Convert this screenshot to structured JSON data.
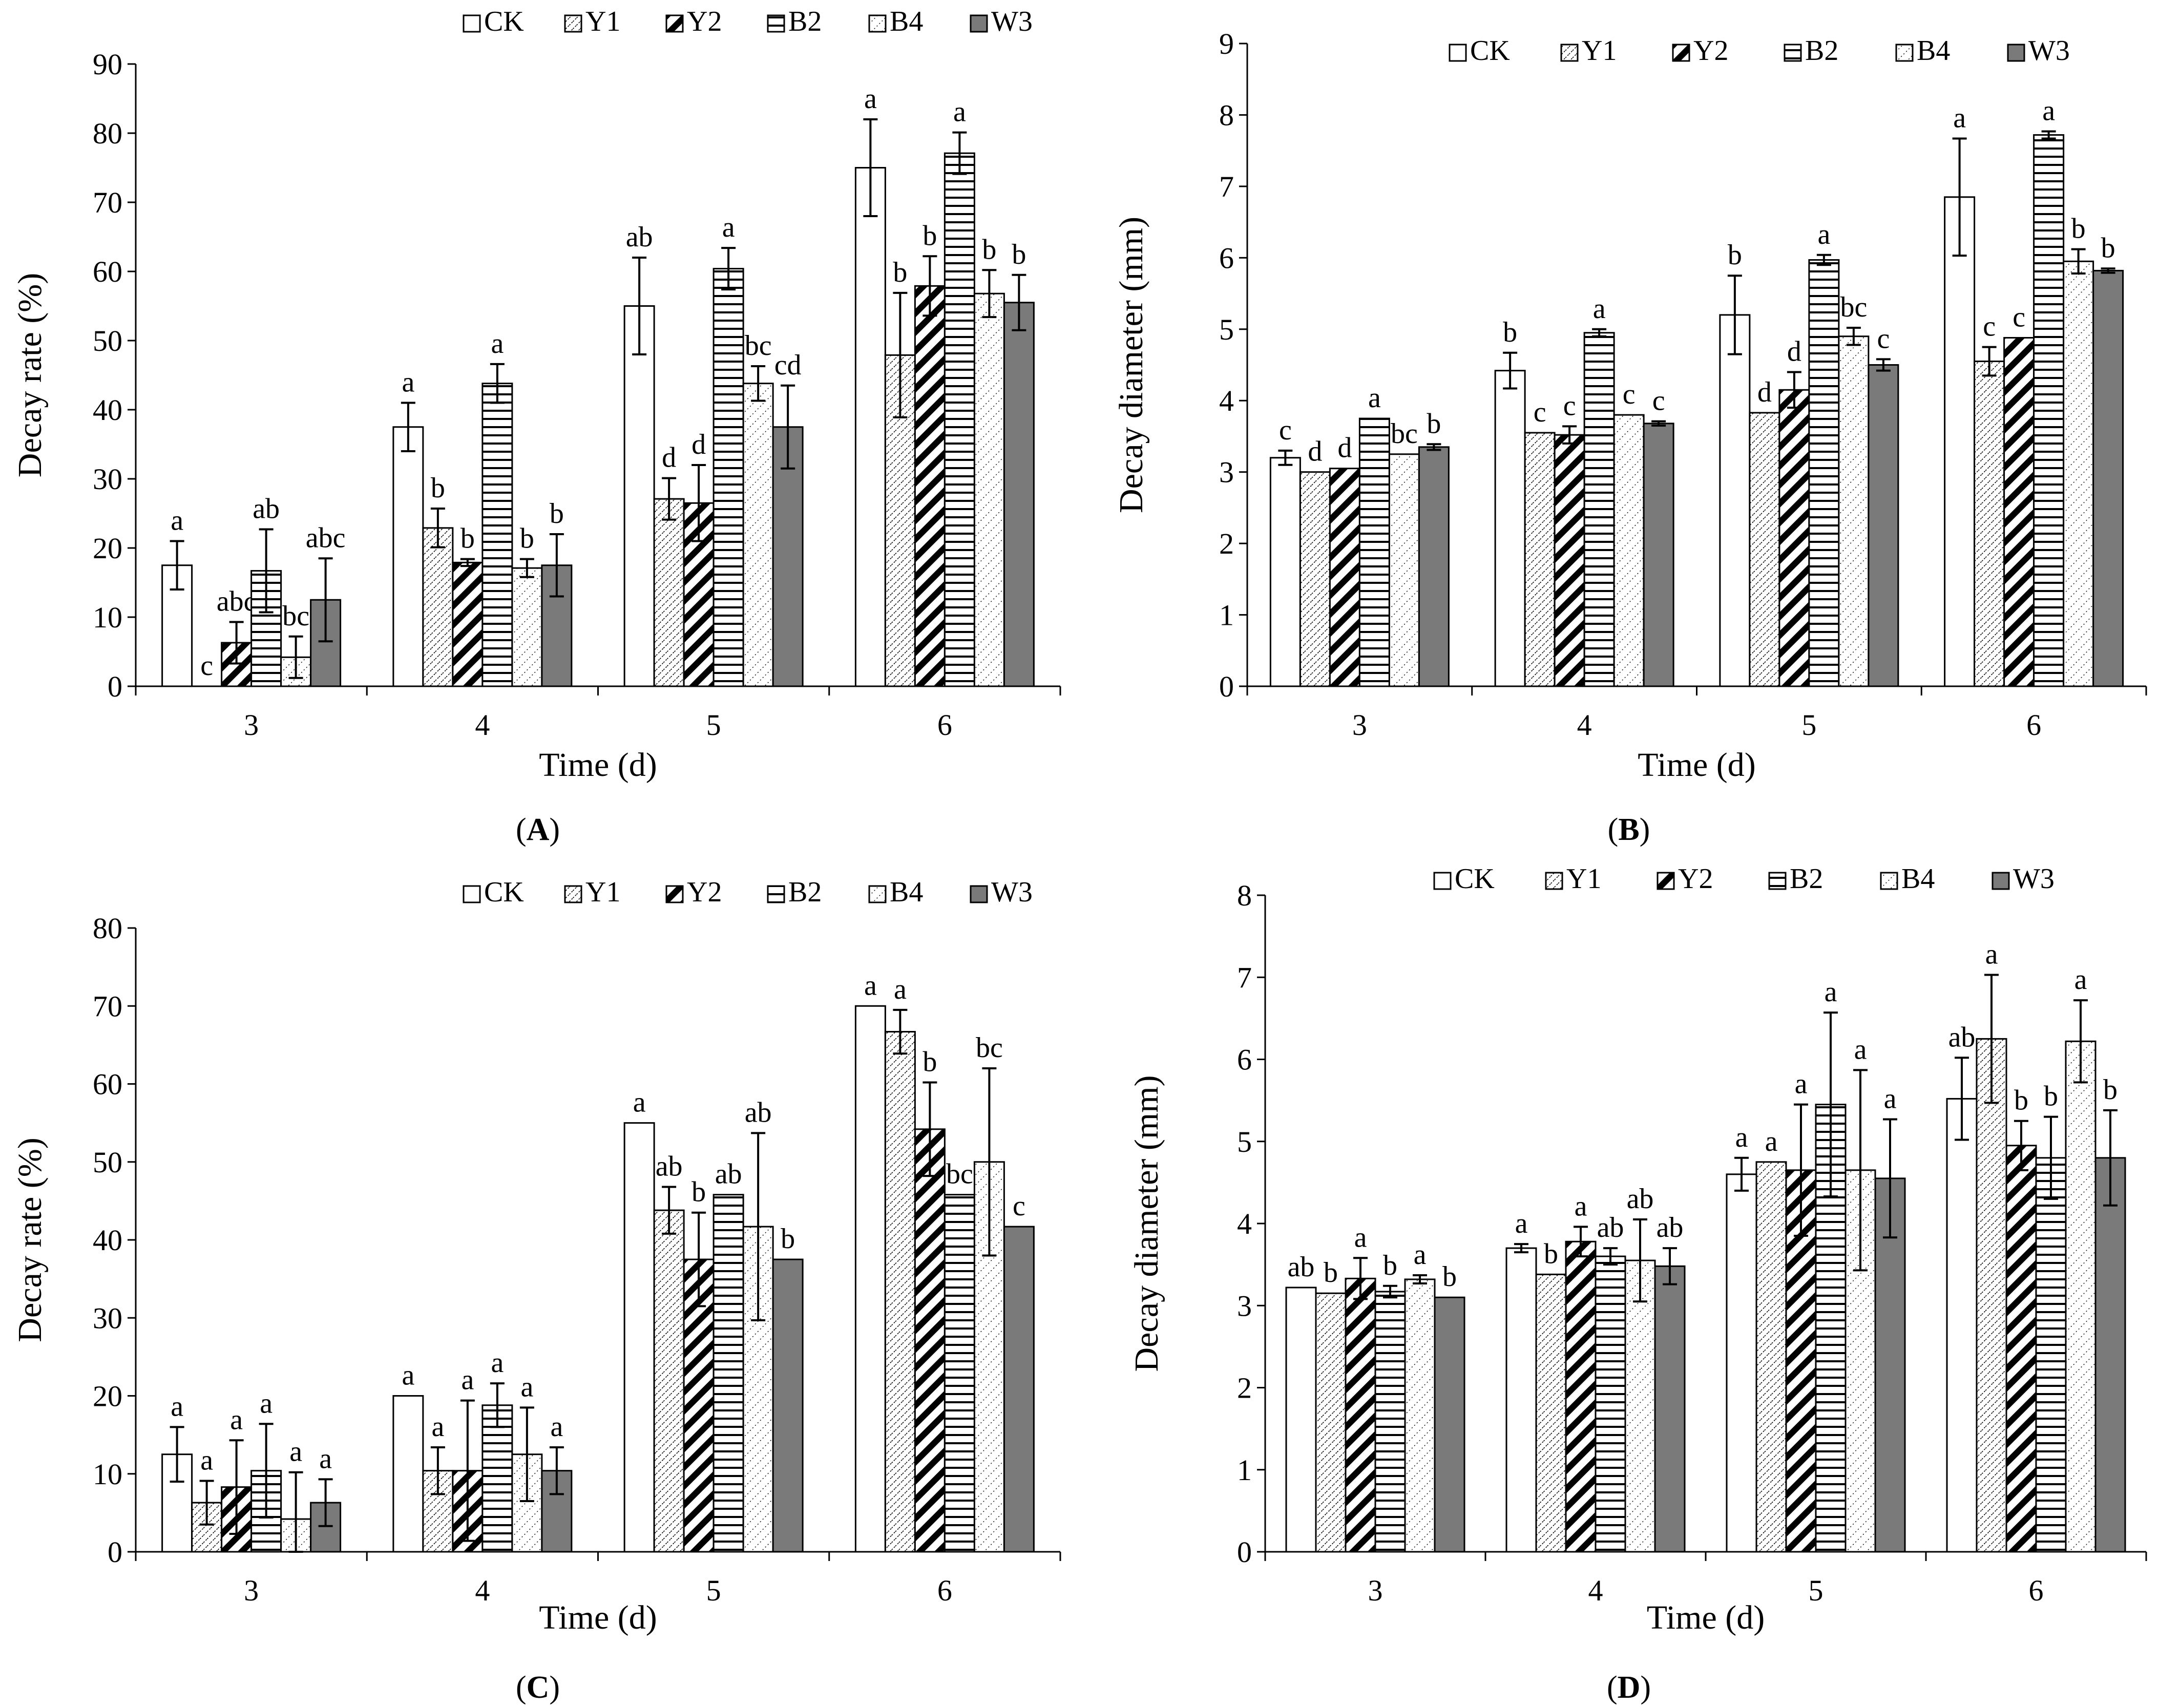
{
  "chart_data": [
    {
      "type": "bar",
      "panel": "(A)",
      "panel_tag": "A",
      "title": "",
      "xlabel": "Time (d)",
      "ylabel": "Decay rate (%)",
      "ylim": [
        0,
        90
      ],
      "ytick_step": 10,
      "legend_position": "top-right",
      "categories": [
        "3",
        "4",
        "5",
        "6"
      ],
      "series": [
        {
          "name": "CK",
          "fill": "white",
          "values": [
            17.5,
            37.5,
            55,
            75
          ],
          "errors": [
            3.5,
            3.5,
            7,
            7
          ],
          "letters": [
            "a",
            "a",
            "ab",
            "a"
          ]
        },
        {
          "name": "Y1",
          "fill": "dots",
          "values": [
            0,
            22.9,
            27.1,
            47.9
          ],
          "errors": [
            0,
            2.8,
            3,
            9
          ],
          "letters": [
            "c",
            "b",
            "d",
            "b"
          ]
        },
        {
          "name": "Y2",
          "fill": "diag",
          "values": [
            6.3,
            17.9,
            26.5,
            57.9
          ],
          "errors": [
            3,
            0.5,
            5.5,
            4.3
          ],
          "letters": [
            "abc",
            "b",
            "d",
            "b"
          ]
        },
        {
          "name": "B2",
          "fill": "hlines",
          "values": [
            16.7,
            43.8,
            60.4,
            77.1
          ],
          "errors": [
            6,
            2.8,
            3,
            3
          ],
          "letters": [
            "ab",
            "a",
            "a",
            "a"
          ]
        },
        {
          "name": "B4",
          "fill": "dots2",
          "values": [
            4.2,
            17.1,
            43.8,
            56.8
          ],
          "errors": [
            3,
            1.3,
            2.5,
            3.4
          ],
          "letters": [
            "bc",
            "b",
            "bc",
            "b"
          ]
        },
        {
          "name": "W3",
          "fill": "gray",
          "values": [
            12.5,
            17.5,
            37.5,
            55.5
          ],
          "errors": [
            6,
            4.5,
            6,
            4
          ],
          "letters": [
            "abc",
            "b",
            "cd",
            "b"
          ]
        }
      ]
    },
    {
      "type": "bar",
      "panel": "(B)",
      "panel_tag": "B",
      "title": "",
      "xlabel": "Time (d)",
      "ylabel": "Decay diameter (mm)",
      "ylim": [
        0,
        9
      ],
      "ytick_step": 1,
      "legend_position": "top-right",
      "categories": [
        "3",
        "4",
        "5",
        "6"
      ],
      "series": [
        {
          "name": "CK",
          "fill": "white",
          "values": [
            3.2,
            4.42,
            5.2,
            6.85
          ],
          "errors": [
            0.1,
            0.25,
            0.55,
            0.82
          ],
          "letters": [
            "c",
            "b",
            "b",
            "a"
          ]
        },
        {
          "name": "Y1",
          "fill": "dots",
          "values": [
            3.0,
            3.55,
            3.83,
            4.55
          ],
          "errors": [
            0,
            0,
            0,
            0.2
          ],
          "letters": [
            "d",
            "c",
            "d",
            "c"
          ]
        },
        {
          "name": "Y2",
          "fill": "diag",
          "values": [
            3.05,
            3.52,
            4.15,
            4.88
          ],
          "errors": [
            0,
            0.12,
            0.25,
            0
          ],
          "letters": [
            "d",
            "c",
            "d",
            "c"
          ]
        },
        {
          "name": "B2",
          "fill": "hlines",
          "values": [
            3.75,
            4.95,
            5.97,
            7.72
          ],
          "errors": [
            0,
            0.05,
            0.07,
            0.05
          ],
          "letters": [
            "a",
            "a",
            "a",
            "a"
          ]
        },
        {
          "name": "B4",
          "fill": "dots2",
          "values": [
            3.25,
            3.8,
            4.9,
            5.95
          ],
          "errors": [
            0,
            0,
            0.12,
            0.17
          ],
          "letters": [
            "bc",
            "c",
            "bc",
            "b"
          ]
        },
        {
          "name": "W3",
          "fill": "gray",
          "values": [
            3.35,
            3.68,
            4.5,
            5.82
          ],
          "errors": [
            0.04,
            0.03,
            0.08,
            0.03
          ],
          "letters": [
            "b",
            "c",
            "c",
            "b"
          ]
        }
      ]
    },
    {
      "type": "bar",
      "panel": "(C)",
      "panel_tag": "C",
      "title": "",
      "xlabel": "Time (d)",
      "ylabel": "Decay rate (%)",
      "ylim": [
        0,
        80
      ],
      "ytick_step": 10,
      "legend_position": "top-right",
      "categories": [
        "3",
        "4",
        "5",
        "6"
      ],
      "series": [
        {
          "name": "CK",
          "fill": "white",
          "values": [
            12.5,
            20,
            55,
            70
          ],
          "errors": [
            3.5,
            0,
            0,
            0
          ],
          "letters": [
            "a",
            "a",
            "a",
            "a"
          ]
        },
        {
          "name": "Y1",
          "fill": "dots",
          "values": [
            6.3,
            10.4,
            43.8,
            66.7
          ],
          "errors": [
            2.8,
            3,
            3,
            2.8
          ],
          "letters": [
            "a",
            "a",
            "ab",
            "a"
          ]
        },
        {
          "name": "Y2",
          "fill": "diag",
          "values": [
            8.3,
            10.4,
            37.5,
            54.2
          ],
          "errors": [
            6,
            9,
            6,
            6
          ],
          "letters": [
            "a",
            "a",
            "b",
            "b"
          ]
        },
        {
          "name": "B2",
          "fill": "hlines",
          "values": [
            10.4,
            18.8,
            45.8,
            45.8
          ],
          "errors": [
            6,
            2.8,
            0,
            0
          ],
          "letters": [
            "a",
            "a",
            "ab",
            "bc"
          ]
        },
        {
          "name": "B4",
          "fill": "dots2",
          "values": [
            4.2,
            12.5,
            41.7,
            50
          ],
          "errors": [
            6,
            6,
            12,
            12
          ],
          "letters": [
            "a",
            "a",
            "ab",
            "bc"
          ]
        },
        {
          "name": "W3",
          "fill": "gray",
          "values": [
            6.3,
            10.4,
            37.5,
            41.7
          ],
          "errors": [
            3,
            3,
            0,
            0
          ],
          "letters": [
            "a",
            "a",
            "b",
            "c"
          ]
        }
      ]
    },
    {
      "type": "bar",
      "panel": "(D)",
      "panel_tag": "D",
      "title": "",
      "xlabel": "Time (d)",
      "ylabel": "Decay diameter (mm)",
      "ylim": [
        0,
        8
      ],
      "ytick_step": 1,
      "legend_position": "top-right",
      "categories": [
        "3",
        "4",
        "5",
        "6"
      ],
      "series": [
        {
          "name": "CK",
          "fill": "white",
          "values": [
            3.22,
            3.7,
            4.6,
            5.52
          ],
          "errors": [
            0,
            0.05,
            0.2,
            0.5
          ],
          "letters": [
            "ab",
            "a",
            "a",
            "ab"
          ]
        },
        {
          "name": "Y1",
          "fill": "dots",
          "values": [
            3.15,
            3.38,
            4.75,
            6.25
          ],
          "errors": [
            0,
            0,
            0,
            0.78
          ],
          "letters": [
            "b",
            "b",
            "a",
            "a"
          ]
        },
        {
          "name": "Y2",
          "fill": "diag",
          "values": [
            3.33,
            3.78,
            4.65,
            4.95
          ],
          "errors": [
            0.25,
            0.18,
            0.8,
            0.3
          ],
          "letters": [
            "a",
            "a",
            "a",
            "b"
          ]
        },
        {
          "name": "B2",
          "fill": "hlines",
          "values": [
            3.17,
            3.6,
            5.45,
            4.8
          ],
          "errors": [
            0.07,
            0.1,
            1.12,
            0.5
          ],
          "letters": [
            "b",
            "ab",
            "a",
            "b"
          ]
        },
        {
          "name": "B4",
          "fill": "dots2",
          "values": [
            3.32,
            3.55,
            4.65,
            6.22
          ],
          "errors": [
            0.05,
            0.5,
            1.22,
            0.5
          ],
          "letters": [
            "a",
            "ab",
            "a",
            "a"
          ]
        },
        {
          "name": "W3",
          "fill": "gray",
          "values": [
            3.1,
            3.48,
            4.55,
            4.8
          ],
          "errors": [
            0,
            0.22,
            0.72,
            0.58
          ],
          "letters": [
            "b",
            "ab",
            "a",
            "b"
          ]
        }
      ]
    }
  ]
}
